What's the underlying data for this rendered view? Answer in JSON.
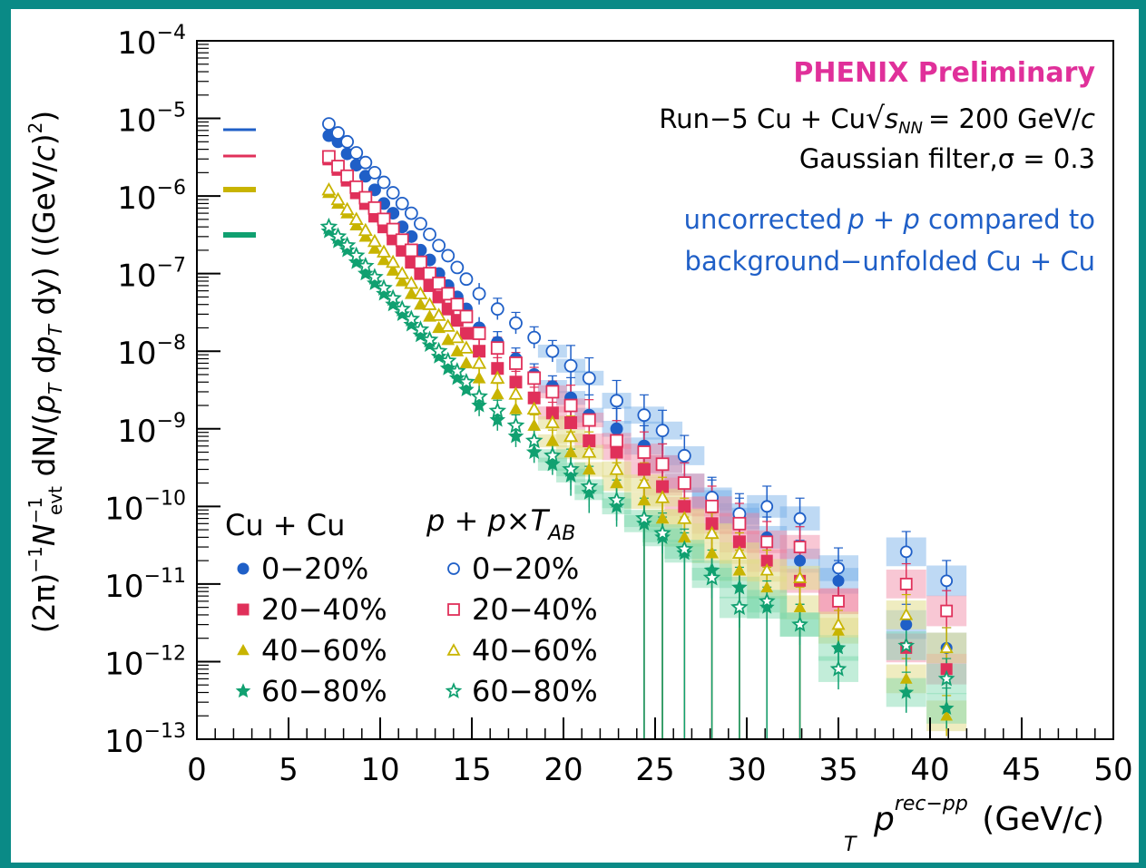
{
  "colors": {
    "frame": "#0a8a86",
    "series_blue": "#1f5fc7",
    "series_red": "#e0305a",
    "series_yellow": "#c8b400",
    "series_green": "#10a070",
    "title_magenta": "#e0309a",
    "annotation_blue": "#1f5fc7"
  },
  "header": {
    "title": "PHENIX Preliminary",
    "run_prefix": "Run−5 Cu + Cu",
    "sqrt_s": "s",
    "sqrt_s_sub": "NN",
    "energy": "= 200 GeV/",
    "energy_c": "c",
    "filter": "Gaussian filter,σ = 0.3",
    "note_line1_pre": "uncorrected",
    "note_line1_p1": "p",
    "note_line1_plus": " + ",
    "note_line1_p2": "p",
    "note_line1_post": " compared to",
    "note_line2": "background−unfolded Cu + Cu"
  },
  "axes": {
    "xlabel_p": "p",
    "xlabel_sup": "rec−pp",
    "xlabel_sub": "T",
    "xlabel_unit": " (GeV/",
    "xlabel_c": "c",
    "xlabel_close": ")",
    "ylabel": "(2π)⁻¹N⁻¹evt dN/(pT dpT dy) ((GeV/c)²)",
    "ylabel_parts": {
      "a": "(2π)",
      "a_sup": "−1",
      "b": "N",
      "b_sub": "evt",
      "b_sup": "−1",
      "c": " dN/(",
      "d": "p",
      "d_sub": "T",
      "e": " d",
      "f": "p",
      "f_sub": "T",
      "g": " dy) ((GeV/",
      "h": "c",
      "i": ")",
      "i_sup": "2",
      "j": ")"
    }
  },
  "legend": {
    "cucu_header": "Cu + Cu",
    "pp_header_p1": "p",
    "pp_header_plus": " + ",
    "pp_header_p2": "p",
    "pp_header_times": "×",
    "pp_header_T": "T",
    "pp_header_sub": "AB",
    "labels": [
      "0−20%",
      "20−40%",
      "40−60%",
      "60−80%"
    ]
  },
  "chart_data": {
    "type": "scatter",
    "x_range": [
      0,
      50
    ],
    "y_range": [
      1e-13,
      0.0001
    ],
    "y_scale": "log",
    "x_ticks": [
      0,
      5,
      10,
      15,
      20,
      25,
      30,
      35,
      40,
      45,
      50
    ],
    "x_tick_labels": [
      "0",
      "5",
      "10",
      "15",
      "20",
      "25",
      "30",
      "35",
      "40",
      "45",
      "50"
    ],
    "y_ticks": [
      -13,
      -12,
      -11,
      -10,
      -9,
      -8,
      -7,
      -6,
      -5,
      -4
    ],
    "y_tick_labels": [
      "−13",
      "−12",
      "−11",
      "−10",
      "−9",
      "−8",
      "−7",
      "−6",
      "−5",
      "−4"
    ],
    "y_tick_base": "10",
    "legend_position": "bottom-left",
    "series": [
      {
        "name": "Cu + Cu 0−20%",
        "marker": "filled-circle",
        "color": "#1f5fc7",
        "x": [
          7.2,
          7.7,
          8.2,
          8.7,
          9.2,
          9.7,
          10.2,
          10.7,
          11.2,
          11.7,
          12.2,
          12.7,
          13.2,
          13.7,
          14.2,
          14.7,
          15.4,
          16.4,
          17.4,
          18.4,
          19.4,
          20.4,
          21.4,
          22.9,
          24.4,
          25.4,
          26.6,
          28.1,
          29.6,
          31.1,
          32.9,
          35.0,
          38.7,
          40.9
        ],
        "y": [
          6e-06,
          5e-06,
          3.5e-06,
          2.5e-06,
          1.8e-06,
          1.2e-06,
          8e-07,
          6e-07,
          4e-07,
          3e-07,
          2e-07,
          1.5e-07,
          1e-07,
          7e-08,
          5e-08,
          3.5e-08,
          2e-08,
          1.3e-08,
          8e-09,
          5e-09,
          3.5e-09,
          2.5e-09,
          1.5e-09,
          1e-09,
          6e-10,
          3.5e-10,
          2e-10,
          1.2e-10,
          7e-11,
          4e-11,
          2e-11,
          1.1e-11,
          3e-12,
          1.5e-12
        ]
      },
      {
        "name": "Cu + Cu 20−40%",
        "marker": "filled-square",
        "color": "#e0305a",
        "x": [
          7.2,
          7.7,
          8.2,
          8.7,
          9.2,
          9.7,
          10.2,
          10.7,
          11.2,
          11.7,
          12.2,
          12.7,
          13.2,
          13.7,
          14.2,
          14.7,
          15.4,
          16.4,
          17.4,
          18.4,
          19.4,
          20.4,
          21.4,
          22.9,
          24.4,
          25.4,
          26.6,
          28.1,
          29.6,
          31.1,
          32.9,
          35.0,
          38.7,
          40.9
        ],
        "y": [
          3e-06,
          2.2e-06,
          1.6e-06,
          1.1e-06,
          8e-07,
          5.5e-07,
          4e-07,
          2.8e-07,
          2e-07,
          1.4e-07,
          1e-07,
          7e-08,
          5e-08,
          3.5e-08,
          2.5e-08,
          1.7e-08,
          1e-08,
          6e-09,
          4e-09,
          2.5e-09,
          1.6e-09,
          1.2e-09,
          7e-10,
          5e-10,
          3e-10,
          1.8e-10,
          1e-10,
          6e-11,
          3.5e-11,
          2e-11,
          1.1e-11,
          6e-12,
          1.5e-12,
          8e-13
        ]
      },
      {
        "name": "Cu + Cu 40−60%",
        "marker": "filled-triangle",
        "color": "#c8b400",
        "x": [
          7.2,
          7.7,
          8.2,
          8.7,
          9.2,
          9.7,
          10.2,
          10.7,
          11.2,
          11.7,
          12.2,
          12.7,
          13.2,
          13.7,
          14.2,
          14.7,
          15.4,
          16.4,
          17.4,
          18.4,
          19.4,
          20.4,
          21.4,
          22.9,
          24.4,
          25.4,
          26.6,
          28.1,
          29.6,
          31.1,
          32.9,
          35.0,
          38.7,
          40.9
        ],
        "y": [
          1.1e-06,
          8e-07,
          6e-07,
          4.2e-07,
          3e-07,
          2.1e-07,
          1.5e-07,
          1.1e-07,
          8e-08,
          5.5e-08,
          4e-08,
          2.8e-08,
          2e-08,
          1.4e-08,
          1e-08,
          7e-09,
          4.5e-09,
          2.8e-09,
          1.8e-09,
          1.1e-09,
          7e-10,
          5e-10,
          3e-10,
          2e-10,
          1.2e-10,
          7e-11,
          4e-11,
          2.5e-11,
          1.5e-11,
          9e-12,
          5e-12,
          2.5e-12,
          6e-13,
          2e-13
        ]
      },
      {
        "name": "Cu + Cu 60−80%",
        "marker": "filled-star",
        "color": "#10a070",
        "x": [
          7.2,
          7.7,
          8.2,
          8.7,
          9.2,
          9.7,
          10.2,
          10.7,
          11.2,
          11.7,
          12.2,
          12.7,
          13.2,
          13.7,
          14.2,
          14.7,
          15.4,
          16.4,
          17.4,
          18.4,
          19.4,
          20.4,
          21.4,
          22.9,
          24.4,
          25.4,
          26.6,
          28.1,
          29.6,
          31.1,
          32.9,
          35.0,
          38.7,
          40.9
        ],
        "y": [
          3.5e-07,
          2.6e-07,
          2e-07,
          1.4e-07,
          1e-07,
          7.5e-08,
          5.5e-08,
          4e-08,
          3e-08,
          2.2e-08,
          1.6e-08,
          1.2e-08,
          8.5e-09,
          6e-09,
          4.5e-09,
          3.2e-09,
          2e-09,
          1.3e-09,
          8e-10,
          5e-10,
          3.5e-10,
          2.5e-10,
          1.5e-10,
          1e-10,
          6e-11,
          4e-11,
          2.5e-11,
          1.5e-11,
          9e-12,
          5e-12,
          3e-12,
          1.5e-12,
          4e-13,
          2.5e-13
        ]
      },
      {
        "name": "p + p×TAB 0−20%",
        "marker": "open-circle",
        "color": "#1f5fc7",
        "x": [
          7.2,
          7.7,
          8.2,
          8.7,
          9.2,
          9.7,
          10.2,
          10.7,
          11.2,
          11.7,
          12.2,
          12.7,
          13.2,
          13.7,
          14.2,
          14.7,
          15.4,
          16.4,
          17.4,
          18.4,
          19.4,
          20.4,
          21.4,
          22.9,
          24.4,
          25.4,
          26.6,
          28.1,
          29.6,
          31.1,
          32.9,
          35.0,
          38.7,
          40.9
        ],
        "y": [
          8.5e-06,
          6.5e-06,
          5e-06,
          3.6e-06,
          2.7e-06,
          2e-06,
          1.5e-06,
          1.1e-06,
          8e-07,
          6e-07,
          4.4e-07,
          3.2e-07,
          2.3e-07,
          1.7e-07,
          1.2e-07,
          8.5e-08,
          5.5e-08,
          3.5e-08,
          2.3e-08,
          1.5e-08,
          1e-08,
          6.5e-09,
          4.5e-09,
          2.3e-09,
          1.5e-09,
          9.5e-10,
          4.5e-10,
          1.3e-10,
          8e-11,
          1e-10,
          7e-11,
          1.6e-11,
          2.6e-11,
          1.1e-11
        ]
      },
      {
        "name": "p + p×TAB 20−40%",
        "marker": "open-square",
        "color": "#e0305a",
        "x": [
          7.2,
          7.7,
          8.2,
          8.7,
          9.2,
          9.7,
          10.2,
          10.7,
          11.2,
          11.7,
          12.2,
          12.7,
          13.2,
          13.7,
          14.2,
          14.7,
          15.4,
          16.4,
          17.4,
          18.4,
          19.4,
          20.4,
          21.4,
          22.9,
          24.4,
          25.4,
          26.6,
          28.1,
          29.6,
          31.1,
          32.9,
          35.0,
          38.7,
          40.9
        ],
        "y": [
          3.2e-06,
          2.4e-06,
          1.8e-06,
          1.3e-06,
          9.5e-07,
          7e-07,
          5e-07,
          3.7e-07,
          2.7e-07,
          2e-07,
          1.4e-07,
          1e-07,
          7.5e-08,
          5.5e-08,
          4e-08,
          2.8e-08,
          1.7e-08,
          1.1e-08,
          7e-09,
          4.5e-09,
          3e-09,
          2e-09,
          1.3e-09,
          7e-10,
          5e-10,
          3.5e-10,
          2e-10,
          1e-10,
          6e-11,
          3.5e-11,
          3e-11,
          6e-12,
          1e-11,
          4.5e-12
        ]
      },
      {
        "name": "p + p×TAB 40−60%",
        "marker": "open-triangle",
        "color": "#c8b400",
        "x": [
          7.2,
          7.7,
          8.2,
          8.7,
          9.2,
          9.7,
          10.2,
          10.7,
          11.2,
          11.7,
          12.2,
          12.7,
          13.2,
          13.7,
          14.2,
          14.7,
          15.4,
          16.4,
          17.4,
          18.4,
          19.4,
          20.4,
          21.4,
          22.9,
          24.4,
          25.4,
          26.6,
          28.1,
          29.6,
          31.1,
          32.9,
          35.0,
          38.7,
          40.9
        ],
        "y": [
          1.2e-06,
          9e-07,
          6.7e-07,
          5e-07,
          3.6e-07,
          2.6e-07,
          1.9e-07,
          1.4e-07,
          1e-07,
          7.5e-08,
          5.5e-08,
          4e-08,
          2.9e-08,
          2.1e-08,
          1.5e-08,
          1.1e-08,
          7e-09,
          4.5e-09,
          2.8e-09,
          1.8e-09,
          1.2e-09,
          8e-10,
          5e-10,
          3e-10,
          2e-10,
          1.3e-10,
          7e-11,
          4.5e-11,
          2.5e-11,
          1.5e-11,
          1.2e-11,
          3e-12,
          4e-12,
          1.5e-12
        ]
      },
      {
        "name": "p + p×TAB 60−80%",
        "marker": "open-star",
        "color": "#10a070",
        "x": [
          7.2,
          7.7,
          8.2,
          8.7,
          9.2,
          9.7,
          10.2,
          10.7,
          11.2,
          11.7,
          12.2,
          12.7,
          13.2,
          13.7,
          14.2,
          14.7,
          15.4,
          16.4,
          17.4,
          18.4,
          19.4,
          20.4,
          21.4,
          22.9,
          24.4,
          25.4,
          26.6,
          28.1,
          29.6,
          31.1,
          32.9,
          35.0,
          38.7,
          40.9
        ],
        "y": [
          4e-07,
          3e-07,
          2.3e-07,
          1.7e-07,
          1.25e-07,
          9e-08,
          6.5e-08,
          4.8e-08,
          3.5e-08,
          2.6e-08,
          1.9e-08,
          1.4e-08,
          1e-08,
          7.5e-09,
          5.5e-09,
          4e-09,
          2.6e-09,
          1.7e-09,
          1.1e-09,
          7e-10,
          4.5e-10,
          3e-10,
          1.8e-10,
          1.2e-10,
          7e-11,
          4.5e-11,
          2.8e-11,
          1.2e-11,
          5e-12,
          6e-12,
          3e-12,
          8e-13,
          1.6e-12,
          6e-13
        ]
      }
    ]
  }
}
